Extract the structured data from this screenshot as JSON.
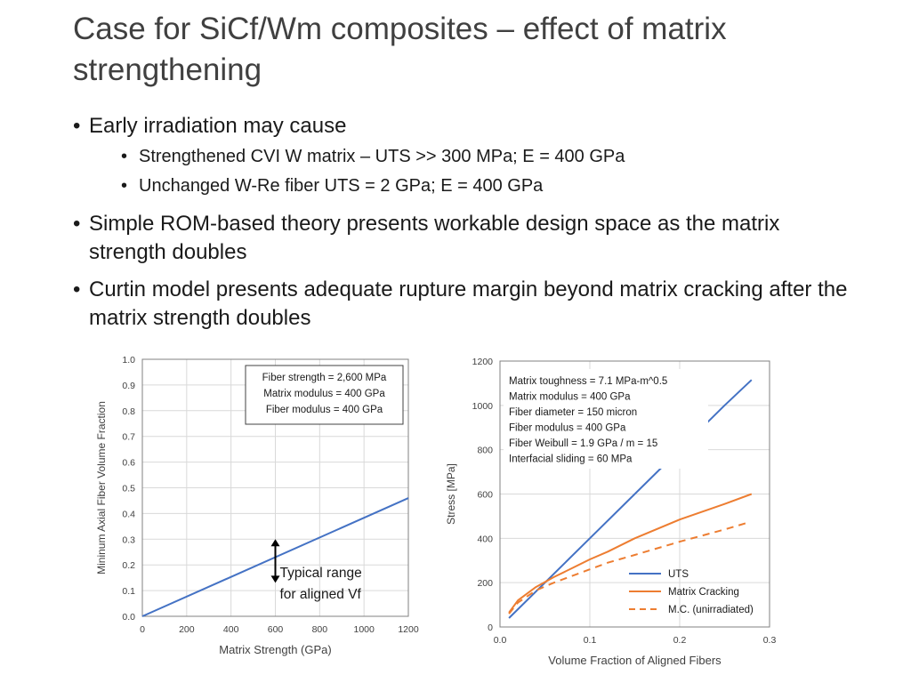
{
  "slide": {
    "title": "Case for SiCf/Wm composites – effect of matrix strengthening",
    "bullets": [
      {
        "text": "Early irradiation may cause",
        "sub": [
          "Strengthened CVI W matrix – UTS >> 300 MPa; E = 400 GPa",
          "Unchanged W-Re fiber UTS = 2 GPa; E = 400 GPa"
        ]
      },
      {
        "text": "Simple ROM-based theory presents workable design space as the matrix strength doubles"
      },
      {
        "text": "Curtin model presents adequate rupture margin beyond matrix cracking after the matrix strength doubles"
      }
    ]
  },
  "chart_data": [
    {
      "type": "line",
      "xlabel": "Matrix Strength (GPa)",
      "ylabel": "Mininum Axial Fiber Volume Fraction",
      "xlim": [
        0,
        1200
      ],
      "ylim": [
        0,
        1.0
      ],
      "xticks": [
        "0",
        "200",
        "400",
        "600",
        "800",
        "1000",
        "1200"
      ],
      "yticks": [
        "0.0",
        "0.1",
        "0.2",
        "0.3",
        "0.4",
        "0.5",
        "0.6",
        "0.7",
        "0.8",
        "0.9",
        "1.0"
      ],
      "grid": true,
      "series": [
        {
          "color": "#4472c4",
          "x": [
            0,
            1200
          ],
          "y": [
            0.0,
            0.46
          ]
        }
      ],
      "info_box": [
        "Fiber strength = 2,600 MPa",
        "Matrix modulus = 400 GPa",
        "Fiber modulus = 400 GPa"
      ],
      "annotation": {
        "text_lines": [
          "Typical range",
          "for aligned Vf"
        ],
        "arrow_x": 600,
        "arrow_y": [
          0.13,
          0.3
        ]
      }
    },
    {
      "type": "line",
      "xlabel": "Volume Fraction of Aligned Fibers",
      "ylabel": "Stress [MPa]",
      "xlim": [
        0,
        0.3
      ],
      "ylim": [
        0,
        1200
      ],
      "xticks": [
        "0.0",
        "0.1",
        "0.2",
        "0.3"
      ],
      "yticks": [
        "0",
        "200",
        "400",
        "600",
        "800",
        "1000",
        "1200"
      ],
      "grid": true,
      "series": [
        {
          "name": "UTS",
          "color": "#4472c4",
          "dash": false,
          "x": [
            0.01,
            0.05,
            0.1,
            0.15,
            0.2,
            0.25,
            0.28
          ],
          "y": [
            40,
            200,
            400,
            600,
            800,
            1000,
            1115
          ]
        },
        {
          "name": "Matrix Cracking",
          "color": "#ed7d31",
          "dash": false,
          "x": [
            0.01,
            0.02,
            0.04,
            0.06,
            0.08,
            0.1,
            0.12,
            0.15,
            0.2,
            0.25,
            0.28
          ],
          "y": [
            65,
            120,
            180,
            225,
            265,
            305,
            340,
            400,
            485,
            555,
            600
          ]
        },
        {
          "name": "M.C. (unirradiated)",
          "color": "#ed7d31",
          "dash": true,
          "x": [
            0.01,
            0.02,
            0.04,
            0.06,
            0.08,
            0.1,
            0.12,
            0.15,
            0.2,
            0.25,
            0.275
          ],
          "y": [
            60,
            110,
            165,
            200,
            230,
            260,
            290,
            325,
            385,
            440,
            470
          ]
        }
      ],
      "info_box": [
        "Matrix toughness = 7.1 MPa-m^0.5",
        "Matrix modulus = 400 GPa",
        "Fiber diameter = 150 micron",
        "Fiber modulus = 400 GPa",
        "Fiber Weibull = 1.9 GPa / m = 15",
        "Interfacial sliding = 60 MPa"
      ],
      "legend_position": "bottom-right"
    }
  ]
}
